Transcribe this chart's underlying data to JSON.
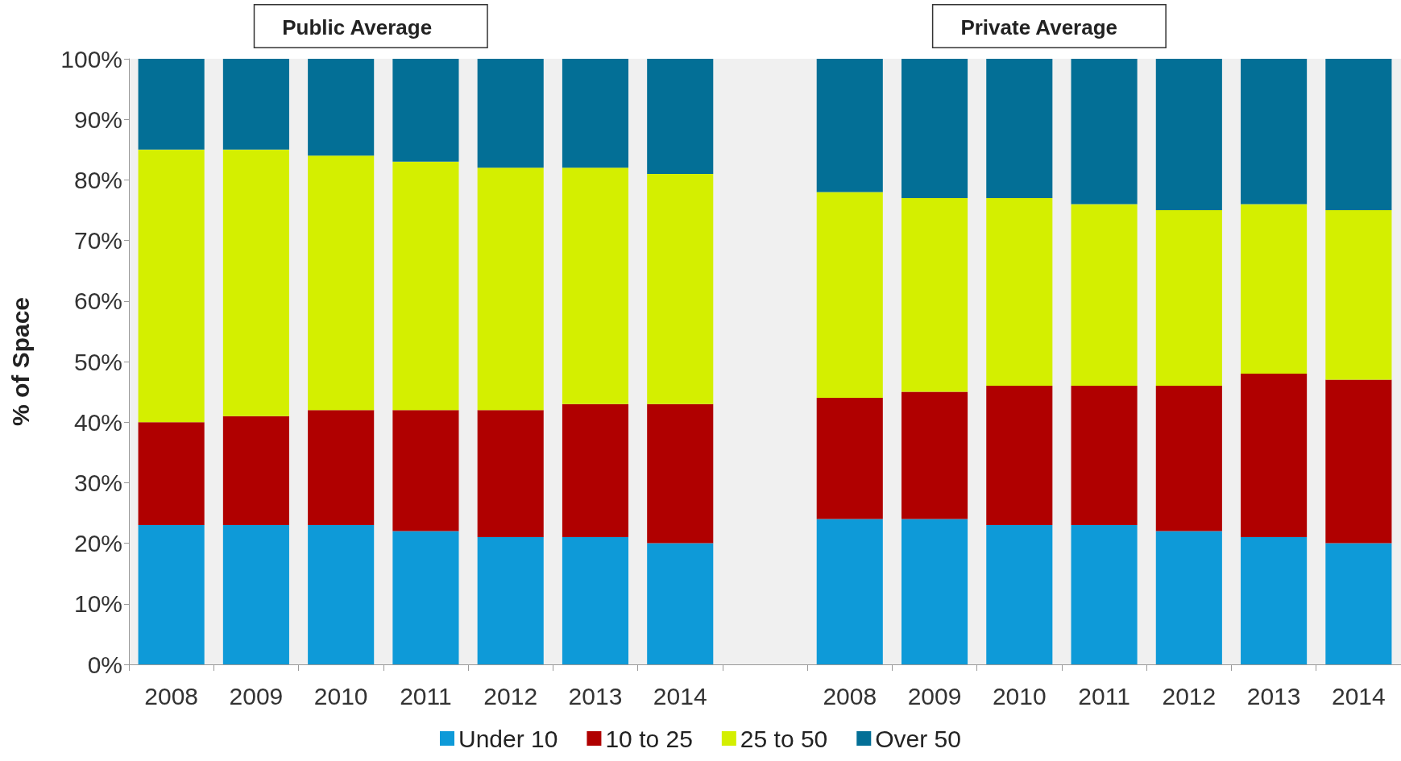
{
  "chart_data": {
    "type": "bar",
    "stacked": true,
    "ylabel": "% of Space",
    "annotations": [
      "Public Average",
      "Private Average"
    ],
    "categories": [
      "2008",
      "2009",
      "2010",
      "2011",
      "2012",
      "2013",
      "2014",
      null,
      "2008",
      "2009",
      "2010",
      "2011",
      "2012",
      "2013",
      "2014"
    ],
    "series": [
      {
        "name": "Under 10",
        "color": "#0e9ad8",
        "values": [
          23,
          23,
          23,
          22,
          21,
          21,
          20,
          null,
          24,
          24,
          23,
          23,
          22,
          21,
          20
        ]
      },
      {
        "name": "10 to 25",
        "color": "#b00000",
        "values": [
          17,
          18,
          19,
          20,
          21,
          22,
          23,
          null,
          20,
          21,
          23,
          23,
          24,
          27,
          27
        ]
      },
      {
        "name": "25 to 50",
        "color": "#d4ef00",
        "values": [
          45,
          44,
          42,
          41,
          40,
          39,
          38,
          null,
          34,
          32,
          31,
          30,
          29,
          28,
          28
        ]
      },
      {
        "name": "Over 50",
        "color": "#036f96",
        "values": [
          15,
          15,
          16,
          17,
          18,
          18,
          19,
          null,
          22,
          23,
          23,
          24,
          25,
          24,
          25
        ]
      }
    ],
    "ylim": [
      0,
      100
    ],
    "yticks": [
      {
        "value": 0,
        "label": "0%"
      },
      {
        "value": 10,
        "label": "10%"
      },
      {
        "value": 20,
        "label": "20%"
      },
      {
        "value": 30,
        "label": "30%"
      },
      {
        "value": 40,
        "label": "40%"
      },
      {
        "value": 50,
        "label": "50%"
      },
      {
        "value": 60,
        "label": "60%"
      },
      {
        "value": 70,
        "label": "70%"
      },
      {
        "value": 80,
        "label": "80%"
      },
      {
        "value": 90,
        "label": "90%"
      },
      {
        "value": 100,
        "label": "100%"
      }
    ],
    "grid": false,
    "legend": "bottom"
  }
}
